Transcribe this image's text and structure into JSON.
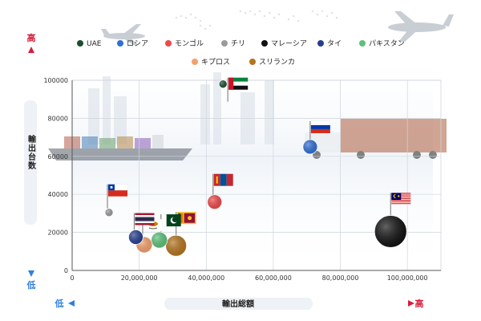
{
  "chart_data": {
    "type": "scatter",
    "xlabel": "輸出総額",
    "ylabel": "輸出台数",
    "y_high_label": "高",
    "y_low_label": "低",
    "x_low_label": "低",
    "x_high_label": "高",
    "xlim": [
      0,
      110000000
    ],
    "ylim": [
      0,
      100000
    ],
    "x_ticks": [
      0,
      20000000,
      40000000,
      60000000,
      80000000,
      100000000
    ],
    "x_tick_labels": [
      "0",
      "20,000,000",
      "40,000,000",
      "60,000,000",
      "80,000,000",
      "100,000,000"
    ],
    "y_ticks": [
      0,
      20000,
      40000,
      60000,
      80000,
      100000
    ],
    "y_tick_labels": [
      "0",
      "20000",
      "40000",
      "60000",
      "80000",
      "100000"
    ],
    "grid": true,
    "legend_position": "top",
    "series": [
      {
        "name": "UAE",
        "color": "#1b4d2e",
        "x": 45000000,
        "y": 98000,
        "size": 5,
        "flag": "uae-flag"
      },
      {
        "name": "ロシア",
        "color": "#2f6fd6",
        "x": 71000000,
        "y": 65000,
        "size": 9,
        "flag": "russia-flag"
      },
      {
        "name": "モンゴル",
        "color": "#f04848",
        "x": 42500000,
        "y": 36000,
        "size": 9,
        "flag": "mongolia-flag"
      },
      {
        "name": "チリ",
        "color": "#9a9a9a",
        "x": 11000000,
        "y": 30500,
        "size": 5,
        "flag": "chile-flag"
      },
      {
        "name": "マレーシア",
        "color": "#111111",
        "x": 95000000,
        "y": 20500,
        "size": 20,
        "flag": "malaysia-flag"
      },
      {
        "name": "タイ",
        "color": "#243f8f",
        "x": 19000000,
        "y": 17500,
        "size": 9,
        "flag": "thailand-flag"
      },
      {
        "name": "パキスタン",
        "color": "#5cc27a",
        "x": 26000000,
        "y": 16000,
        "size": 10,
        "flag": "pakistan-flag"
      },
      {
        "name": "キプロス",
        "color": "#f5a06a",
        "x": 21500000,
        "y": 13500,
        "size": 10,
        "flag": "cyprus-flag"
      },
      {
        "name": "スリランカ",
        "color": "#b5741e",
        "x": 31000000,
        "y": 13000,
        "size": 13,
        "flag": "srilanka-flag"
      }
    ]
  },
  "colors": {
    "high_red": "#d61f3a",
    "low_blue": "#2f7fe0",
    "grid": "#cfd5dc"
  }
}
